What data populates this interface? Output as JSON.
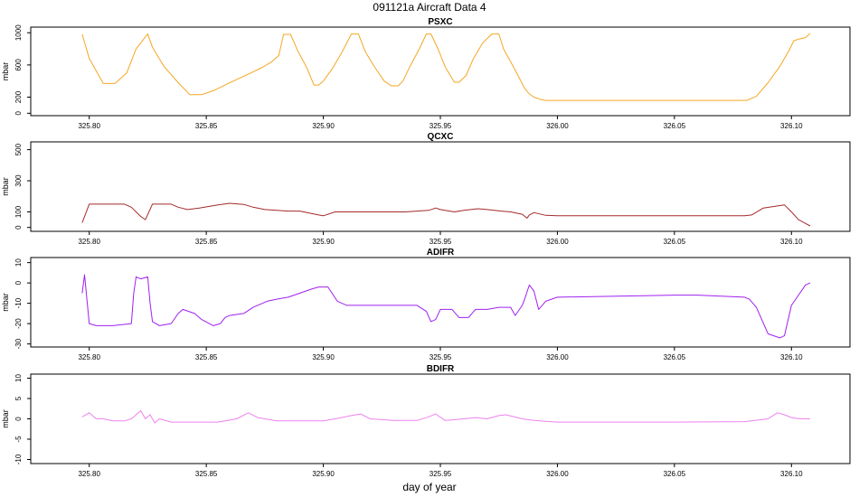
{
  "figure": {
    "title": "091121a   Aircraft Data 4",
    "xlabel": "day of year"
  },
  "colors": {
    "PSXC": "#F5A623",
    "QCXC": "#A52A2A",
    "ADIFR": "#A020F0",
    "BDIFR": "#EE82EE"
  },
  "chart_data": [
    {
      "type": "line",
      "title": "PSXC",
      "ylabel": "mbar",
      "xlim": [
        325.775,
        326.125
      ],
      "ylim": [
        -30,
        1070
      ],
      "yticks": [
        0,
        200,
        600,
        1000
      ],
      "xticks": [
        325.8,
        325.85,
        325.9,
        325.95,
        326.0,
        326.05,
        326.1
      ],
      "series": [
        {
          "color_key": "PSXC",
          "x": [
            325.797,
            325.8,
            325.806,
            325.811,
            325.816,
            325.82,
            325.825,
            325.827,
            325.832,
            325.838,
            325.843,
            325.848,
            325.853,
            325.858,
            325.863,
            325.869,
            325.874,
            325.878,
            325.881,
            325.883,
            325.886,
            325.889,
            325.893,
            325.896,
            325.898,
            325.9,
            325.904,
            325.908,
            325.912,
            325.915,
            325.918,
            325.922,
            325.926,
            325.929,
            325.932,
            325.934,
            325.937,
            325.941,
            325.944,
            325.946,
            325.949,
            325.952,
            325.956,
            325.958,
            325.961,
            325.964,
            325.968,
            325.972,
            325.975,
            325.977,
            325.98,
            325.983,
            325.986,
            325.988,
            325.99,
            325.993,
            325.995,
            326.0,
            326.05,
            326.07,
            326.081,
            326.085,
            326.09,
            326.095,
            326.099,
            326.101,
            326.103,
            326.106,
            326.108
          ],
          "y": [
            980,
            680,
            370,
            370,
            500,
            800,
            985,
            820,
            580,
            380,
            230,
            230,
            280,
            350,
            420,
            500,
            570,
            640,
            720,
            980,
            980,
            780,
            560,
            350,
            350,
            400,
            560,
            760,
            985,
            985,
            760,
            570,
            400,
            340,
            340,
            400,
            580,
            800,
            985,
            985,
            800,
            580,
            385,
            385,
            470,
            670,
            870,
            985,
            985,
            800,
            640,
            480,
            310,
            240,
            200,
            170,
            160,
            160,
            160,
            160,
            160,
            210,
            380,
            580,
            780,
            900,
            920,
            940,
            990
          ]
        }
      ]
    },
    {
      "type": "line",
      "title": "QCXC",
      "ylabel": "mbar",
      "xlim": [
        325.775,
        326.125
      ],
      "ylim": [
        -25,
        550
      ],
      "yticks": [
        0,
        100,
        300,
        500
      ],
      "xticks": [
        325.8,
        325.85,
        325.9,
        325.95,
        326.0,
        326.05,
        326.1
      ],
      "series": [
        {
          "color_key": "QCXC",
          "x": [
            325.797,
            325.8,
            325.815,
            325.818,
            325.822,
            325.824,
            325.827,
            325.835,
            325.838,
            325.842,
            325.847,
            325.855,
            325.86,
            325.866,
            325.87,
            325.875,
            325.885,
            325.89,
            325.893,
            325.898,
            325.9,
            325.905,
            325.92,
            325.935,
            325.94,
            325.945,
            325.948,
            325.95,
            325.956,
            325.96,
            325.966,
            325.97,
            325.976,
            325.98,
            325.985,
            325.987,
            325.988,
            325.99,
            325.995,
            326.0,
            326.08,
            326.083,
            326.088,
            326.097,
            326.1,
            326.103,
            326.108
          ],
          "y": [
            30,
            150,
            150,
            130,
            70,
            50,
            150,
            150,
            130,
            115,
            125,
            145,
            155,
            148,
            130,
            115,
            105,
            105,
            95,
            80,
            75,
            100,
            100,
            100,
            105,
            110,
            125,
            115,
            100,
            110,
            120,
            115,
            105,
            100,
            85,
            60,
            80,
            95,
            78,
            75,
            75,
            80,
            125,
            145,
            100,
            50,
            10
          ]
        }
      ]
    },
    {
      "type": "line",
      "title": "ADIFR",
      "ylabel": "mbar",
      "xlim": [
        325.775,
        326.125
      ],
      "ylim": [
        -31.5,
        12.5
      ],
      "yticks": [
        -30,
        -20,
        -10,
        0,
        10
      ],
      "xticks": [
        325.8,
        325.85,
        325.9,
        325.95,
        326.0,
        326.05,
        326.1
      ],
      "series": [
        {
          "color_key": "ADIFR",
          "x": [
            325.797,
            325.798,
            325.8,
            325.803,
            325.81,
            325.818,
            325.819,
            325.82,
            325.822,
            325.825,
            325.826,
            325.827,
            325.83,
            325.835,
            325.838,
            325.84,
            325.845,
            325.848,
            325.853,
            325.856,
            325.858,
            325.86,
            325.866,
            325.87,
            325.876,
            325.88,
            325.885,
            325.89,
            325.895,
            325.898,
            325.902,
            325.906,
            325.91,
            325.915,
            325.92,
            325.93,
            325.94,
            325.944,
            325.946,
            325.948,
            325.95,
            325.955,
            325.958,
            325.962,
            325.965,
            325.97,
            325.975,
            325.98,
            325.982,
            325.985,
            325.986,
            325.988,
            325.99,
            325.992,
            325.995,
            326.0,
            326.05,
            326.06,
            326.08,
            326.082,
            326.085,
            326.09,
            326.095,
            326.097,
            326.1,
            326.103,
            326.106,
            326.108
          ],
          "y": [
            -5,
            4,
            -20,
            -21,
            -21,
            -20,
            -5,
            3,
            2,
            3,
            -10,
            -19,
            -21,
            -20,
            -15,
            -13,
            -15,
            -18,
            -21,
            -20,
            -17,
            -16,
            -15,
            -12,
            -9,
            -8,
            -7,
            -5,
            -3,
            -2,
            -2,
            -9,
            -11,
            -11,
            -11,
            -11,
            -11,
            -14,
            -19,
            -18,
            -13,
            -13,
            -17,
            -17,
            -13,
            -13,
            -12,
            -12,
            -16,
            -11,
            -8,
            -1,
            -4,
            -13,
            -9,
            -7,
            -6,
            -6,
            -7,
            -8,
            -12,
            -25,
            -27,
            -26,
            -11,
            -6,
            -1,
            0
          ]
        }
      ]
    },
    {
      "type": "line",
      "title": "BDIFR",
      "ylabel": "mbar",
      "xlim": [
        325.775,
        326.125
      ],
      "ylim": [
        -11,
        11
      ],
      "yticks": [
        -10,
        -5,
        0,
        5,
        10
      ],
      "xticks": [
        325.8,
        325.85,
        325.9,
        325.95,
        326.0,
        326.05,
        326.1
      ],
      "series": [
        {
          "color_key": "BDIFR",
          "x": [
            325.797,
            325.8,
            325.803,
            325.806,
            325.81,
            325.815,
            325.818,
            325.82,
            325.822,
            325.824,
            325.826,
            325.828,
            325.83,
            325.835,
            325.845,
            325.855,
            325.863,
            325.868,
            325.872,
            325.88,
            325.89,
            325.9,
            325.905,
            325.912,
            325.916,
            325.92,
            325.93,
            325.94,
            325.945,
            325.948,
            325.952,
            325.96,
            325.965,
            325.97,
            325.975,
            325.978,
            325.985,
            325.99,
            325.995,
            326.0,
            326.05,
            326.08,
            326.09,
            326.094,
            326.097,
            326.1,
            326.104,
            326.108
          ],
          "y": [
            0.5,
            1.5,
            0,
            0,
            -0.5,
            -0.5,
            0,
            1,
            2,
            0,
            1,
            -1,
            0,
            -0.8,
            -0.8,
            -0.8,
            0,
            1.5,
            0.3,
            -0.5,
            -0.5,
            -0.5,
            0,
            0.8,
            1.2,
            0,
            -0.4,
            -0.4,
            0.5,
            1.2,
            -0.4,
            0,
            0.3,
            0,
            0.8,
            1.0,
            0,
            -0.4,
            -0.6,
            -0.8,
            -0.8,
            -0.7,
            0,
            1.5,
            1.0,
            0.3,
            0,
            0
          ]
        }
      ]
    }
  ]
}
